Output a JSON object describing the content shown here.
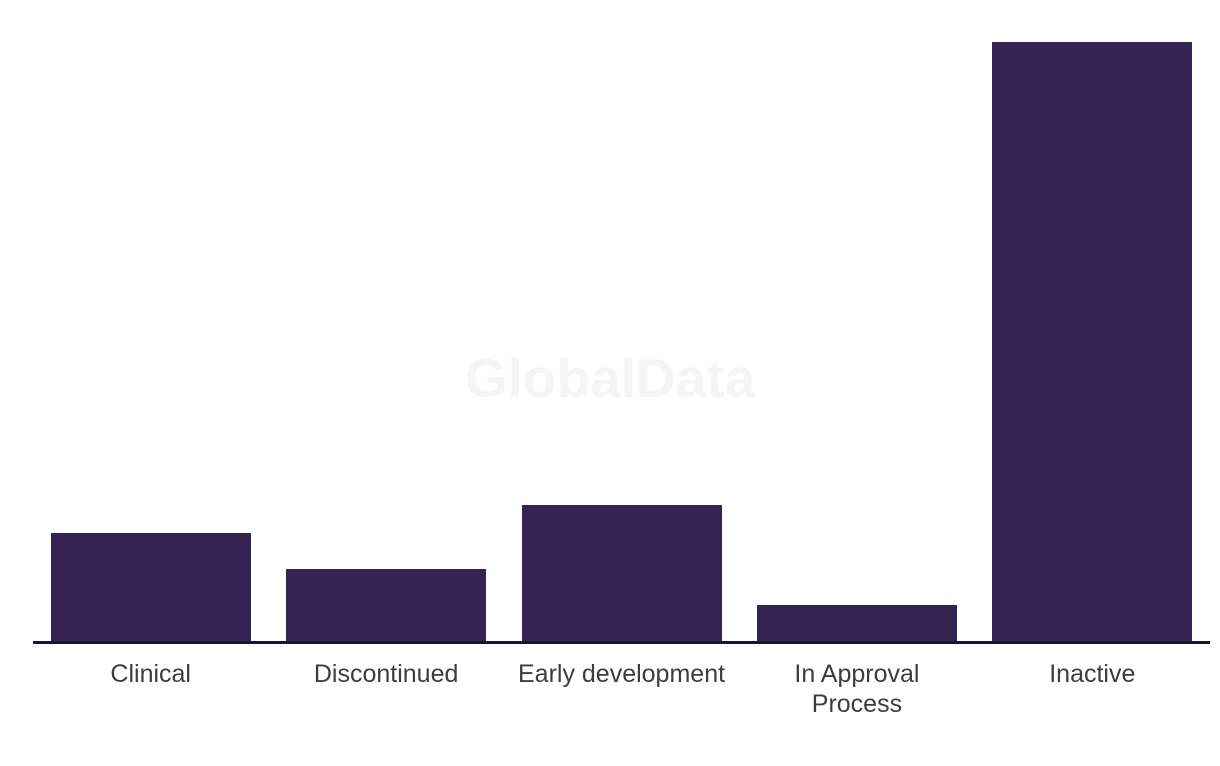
{
  "chart_data": {
    "type": "bar",
    "title": "",
    "xlabel": "",
    "ylabel": "",
    "categories": [
      "Clinical",
      "Discontinued",
      "Early development",
      "In Approval Process",
      "Inactive"
    ],
    "category_label_lines": [
      [
        "Clinical"
      ],
      [
        "Discontinued"
      ],
      [
        "Early development"
      ],
      [
        "In Approval",
        "Process"
      ],
      [
        "Inactive"
      ]
    ],
    "values": [
      18,
      12,
      22.7,
      6,
      100
    ],
    "value_scale": "relative percent of tallest bar (no y-axis, gridlines or value labels shown)",
    "ylim": [
      0,
      100
    ],
    "grid": false,
    "legend": false,
    "bar_color": "#352453",
    "axis_line_color": "#1a1432",
    "label_color": "#3d3d3d"
  },
  "watermark": {
    "text": "GlobalData",
    "color": "#f5f5f6"
  }
}
